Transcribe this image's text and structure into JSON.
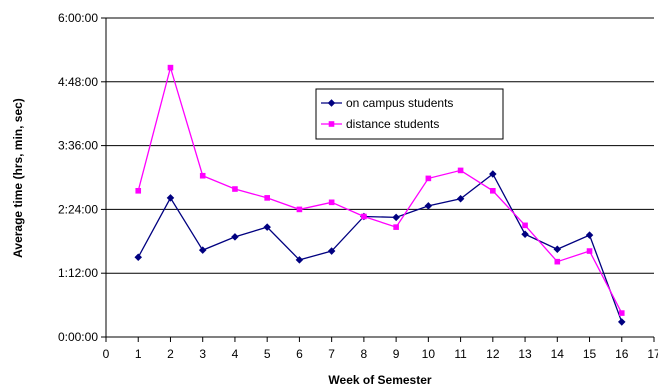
{
  "chart_data": {
    "type": "line",
    "title": "",
    "xlabel": "Week of Semester",
    "ylabel": "Average time (hrs, min, sec)",
    "xlim": [
      0,
      17
    ],
    "ylim": [
      0,
      360
    ],
    "x_ticks": [
      "0",
      "1",
      "2",
      "3",
      "4",
      "5",
      "6",
      "7",
      "8",
      "9",
      "10",
      "11",
      "12",
      "13",
      "14",
      "15",
      "16",
      "17"
    ],
    "y_ticks": [
      {
        "value": 0,
        "label": "0:00:00"
      },
      {
        "value": 72,
        "label": "1:12:00"
      },
      {
        "value": 144,
        "label": "2:24:00"
      },
      {
        "value": 216,
        "label": "3:36:00"
      },
      {
        "value": 288,
        "label": "4:48:00"
      },
      {
        "value": 360,
        "label": "6:00:00"
      }
    ],
    "y_unit": "minutes",
    "grid": "horizontal",
    "legend_position": "top-right",
    "x": [
      1,
      2,
      3,
      4,
      5,
      6,
      7,
      8,
      9,
      10,
      11,
      12,
      13,
      14,
      15,
      16
    ],
    "series": [
      {
        "name": "on campus students",
        "color": "#000080",
        "marker": "diamond",
        "values": [
          90,
          157,
          98,
          113,
          124,
          87,
          97,
          136,
          135,
          148,
          156,
          184,
          116,
          99,
          115,
          17
        ]
      },
      {
        "name": "distance students",
        "color": "#ff00ff",
        "marker": "square",
        "values": [
          165,
          304,
          182,
          167,
          157,
          144,
          152,
          136,
          124,
          179,
          188,
          165,
          126,
          85,
          97,
          27
        ]
      }
    ]
  }
}
